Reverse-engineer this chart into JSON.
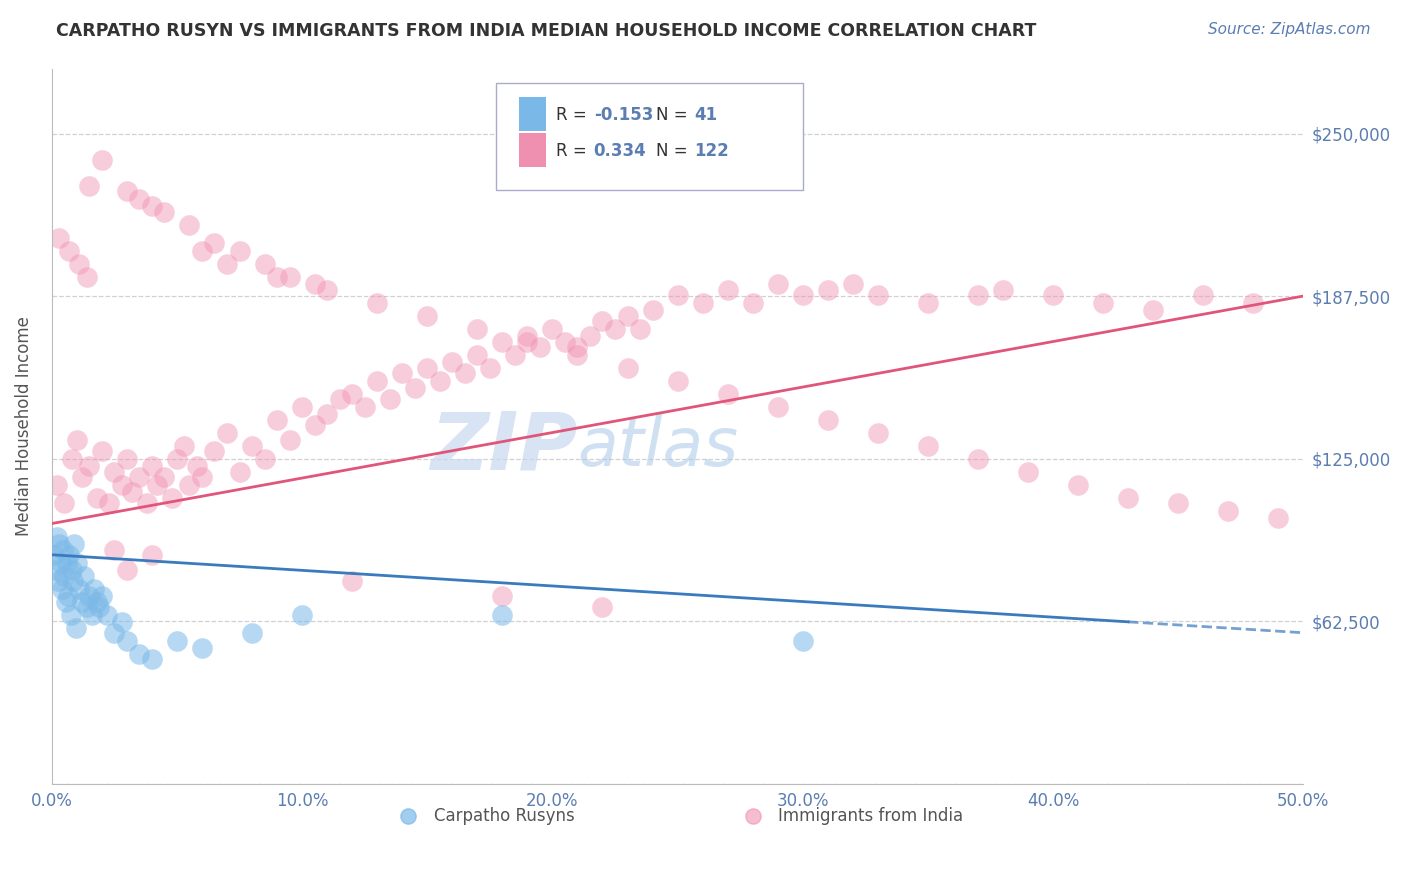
{
  "title": "CARPATHO RUSYN VS IMMIGRANTS FROM INDIA MEDIAN HOUSEHOLD INCOME CORRELATION CHART",
  "source": "Source: ZipAtlas.com",
  "ylabel": "Median Household Income",
  "xlim": [
    0.0,
    50.0
  ],
  "ylim": [
    0,
    275000
  ],
  "yticks": [
    0,
    62500,
    125000,
    187500,
    250000
  ],
  "ytick_labels": [
    "",
    "$62,500",
    "$125,000",
    "$187,500",
    "$250,000"
  ],
  "xticks": [
    0,
    10,
    20,
    30,
    40,
    50
  ],
  "xtick_labels": [
    "0.0%",
    "10.0%",
    "20.0%",
    "30.0%",
    "40.0%",
    "50.0%"
  ],
  "legend_R1": "-0.153",
  "legend_N1": "41",
  "legend_R2": "0.334",
  "legend_N2": "122",
  "blue_color": "#7ab8e8",
  "pink_color": "#f090b0",
  "blue_line_color": "#3a7abf",
  "pink_line_color": "#e05578",
  "axis_color": "#5b7db1",
  "watermark_color": "#c8d8ee",
  "background_color": "#ffffff",
  "blue_scatter_x": [
    0.1,
    0.15,
    0.2,
    0.25,
    0.3,
    0.35,
    0.4,
    0.45,
    0.5,
    0.55,
    0.6,
    0.65,
    0.7,
    0.75,
    0.8,
    0.85,
    0.9,
    0.95,
    1.0,
    1.1,
    1.2,
    1.3,
    1.4,
    1.5,
    1.6,
    1.7,
    1.8,
    1.9,
    2.0,
    2.2,
    2.5,
    2.8,
    3.0,
    3.5,
    4.0,
    5.0,
    6.0,
    8.0,
    10.0,
    18.0,
    30.0
  ],
  "blue_scatter_y": [
    88000,
    82000,
    95000,
    78000,
    92000,
    85000,
    75000,
    90000,
    80000,
    70000,
    85000,
    72000,
    88000,
    65000,
    82000,
    78000,
    92000,
    60000,
    85000,
    75000,
    70000,
    80000,
    68000,
    72000,
    65000,
    75000,
    70000,
    68000,
    72000,
    65000,
    58000,
    62000,
    55000,
    50000,
    48000,
    55000,
    52000,
    58000,
    65000,
    65000,
    55000
  ],
  "pink_scatter_x": [
    0.2,
    0.5,
    0.8,
    1.0,
    1.2,
    1.5,
    1.8,
    2.0,
    2.3,
    2.5,
    2.8,
    3.0,
    3.2,
    3.5,
    3.8,
    4.0,
    4.2,
    4.5,
    4.8,
    5.0,
    5.3,
    5.5,
    5.8,
    6.0,
    6.5,
    7.0,
    7.5,
    8.0,
    8.5,
    9.0,
    9.5,
    10.0,
    10.5,
    11.0,
    11.5,
    12.0,
    12.5,
    13.0,
    13.5,
    14.0,
    14.5,
    15.0,
    15.5,
    16.0,
    16.5,
    17.0,
    17.5,
    18.0,
    18.5,
    19.0,
    19.5,
    20.0,
    20.5,
    21.0,
    21.5,
    22.0,
    22.5,
    23.0,
    23.5,
    24.0,
    25.0,
    26.0,
    27.0,
    28.0,
    29.0,
    30.0,
    31.0,
    32.0,
    33.0,
    35.0,
    37.0,
    38.0,
    40.0,
    42.0,
    44.0,
    46.0,
    48.0,
    2.0,
    3.5,
    4.5,
    5.5,
    6.5,
    7.5,
    8.5,
    9.5,
    10.5,
    1.5,
    3.0,
    4.0,
    6.0,
    7.0,
    9.0,
    11.0,
    13.0,
    15.0,
    17.0,
    19.0,
    21.0,
    23.0,
    25.0,
    27.0,
    29.0,
    31.0,
    33.0,
    35.0,
    37.0,
    39.0,
    41.0,
    43.0,
    45.0,
    47.0,
    49.0,
    0.3,
    0.7,
    1.1,
    1.4,
    2.5,
    4.0,
    3.0,
    12.0,
    18.0,
    22.0
  ],
  "pink_scatter_y": [
    115000,
    108000,
    125000,
    132000,
    118000,
    122000,
    110000,
    128000,
    108000,
    120000,
    115000,
    125000,
    112000,
    118000,
    108000,
    122000,
    115000,
    118000,
    110000,
    125000,
    130000,
    115000,
    122000,
    118000,
    128000,
    135000,
    120000,
    130000,
    125000,
    140000,
    132000,
    145000,
    138000,
    142000,
    148000,
    150000,
    145000,
    155000,
    148000,
    158000,
    152000,
    160000,
    155000,
    162000,
    158000,
    165000,
    160000,
    170000,
    165000,
    172000,
    168000,
    175000,
    170000,
    168000,
    172000,
    178000,
    175000,
    180000,
    175000,
    182000,
    188000,
    185000,
    190000,
    185000,
    192000,
    188000,
    190000,
    192000,
    188000,
    185000,
    188000,
    190000,
    188000,
    185000,
    182000,
    188000,
    185000,
    240000,
    225000,
    220000,
    215000,
    208000,
    205000,
    200000,
    195000,
    192000,
    230000,
    228000,
    222000,
    205000,
    200000,
    195000,
    190000,
    185000,
    180000,
    175000,
    170000,
    165000,
    160000,
    155000,
    150000,
    145000,
    140000,
    135000,
    130000,
    125000,
    120000,
    115000,
    110000,
    108000,
    105000,
    102000,
    210000,
    205000,
    200000,
    195000,
    90000,
    88000,
    82000,
    78000,
    72000,
    68000
  ]
}
